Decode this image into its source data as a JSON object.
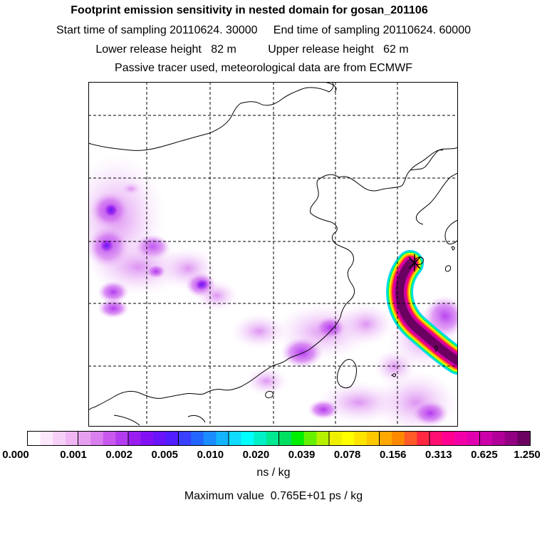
{
  "header": {
    "title": "Footprint emission sensitivity in nested domain for gosan_201106",
    "sampling": "Start time of sampling 20110624. 30000     End time of sampling 20110624. 60000",
    "release": "Lower release height   82 m          Upper release height   62 m",
    "tracer": "Passive tracer used, meteorological data are from ECMWF"
  },
  "colorbar": {
    "ticks": [
      "0.000",
      "0.001",
      "0.002",
      "0.005",
      "0.010",
      "0.020",
      "0.039",
      "0.078",
      "0.156",
      "0.313",
      "0.625",
      "1.250"
    ],
    "colors": [
      "#ffffff",
      "#fce8fc",
      "#f7d0f8",
      "#f0b6f4",
      "#e7a0f0",
      "#d97fee",
      "#c858ee",
      "#b33cee",
      "#9a1ef0",
      "#8210f4",
      "#6a14fa",
      "#501eff",
      "#3a40ff",
      "#2266ff",
      "#1a8cff",
      "#14b4ff",
      "#10dcff",
      "#00ffff",
      "#00f0c8",
      "#00e890",
      "#00e060",
      "#00ee00",
      "#66f000",
      "#b4f000",
      "#eef000",
      "#ffff00",
      "#ffe400",
      "#ffc800",
      "#ffa800",
      "#ff8800",
      "#ff5a28",
      "#ff2840",
      "#ff1070",
      "#ff0090",
      "#f200a8",
      "#e000b0",
      "#cc00a8",
      "#b00098",
      "#900080",
      "#6c0060"
    ],
    "units": "ns / kg"
  },
  "footer": {
    "max_value": "Maximum value  0.765E+01 ps / kg"
  },
  "map": {
    "marker": "receptor-cross"
  }
}
